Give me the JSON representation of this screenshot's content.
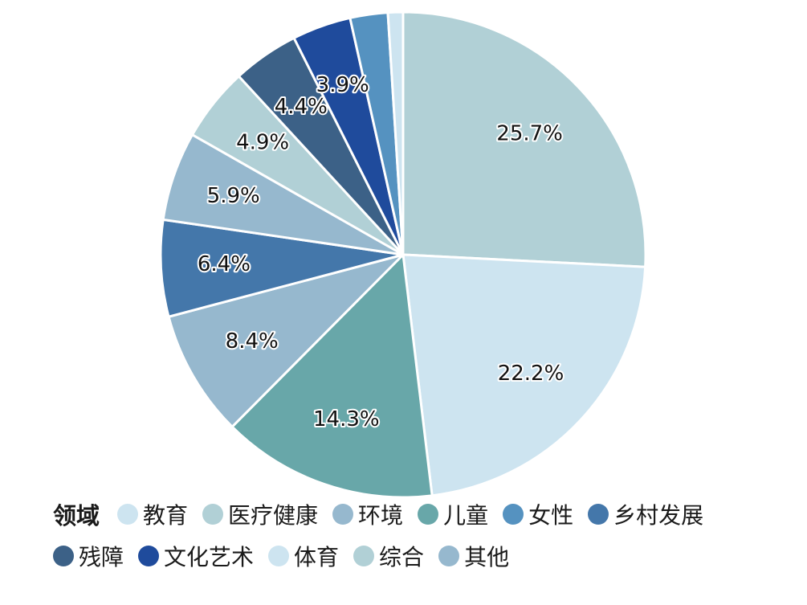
{
  "chart_data": {
    "type": "pie",
    "legend_title": "领域",
    "legend_position": "bottom",
    "slices": [
      {
        "name": "综合",
        "value": 25.7,
        "label": "25.7%",
        "color": "#b1d0d6"
      },
      {
        "name": "体育",
        "value": 22.2,
        "label": "22.2%",
        "color": "#cde4f0"
      },
      {
        "name": "儿童",
        "value": 14.3,
        "label": "14.3%",
        "color": "#68a7a9"
      },
      {
        "name": "其他",
        "value": 8.4,
        "label": "8.4%",
        "color": "#96b8ce"
      },
      {
        "name": "乡村发展",
        "value": 6.4,
        "label": "6.4%",
        "color": "#4477aa"
      },
      {
        "name": "环境",
        "value": 5.9,
        "label": "5.9%",
        "color": "#96b8ce"
      },
      {
        "name": "医疗健康",
        "value": 4.9,
        "label": "4.9%",
        "color": "#b1d0d6"
      },
      {
        "name": "残障",
        "value": 4.4,
        "label": "4.4%",
        "color": "#3c6187"
      },
      {
        "name": "文化艺术",
        "value": 3.9,
        "label": "3.9%",
        "color": "#1f4b9c"
      },
      {
        "name": "女性",
        "value": 2.5,
        "label": "",
        "color": "#5592c0"
      },
      {
        "name": "教育",
        "value": 1.0,
        "label": "",
        "color": "#cde4f0"
      }
    ],
    "legend": [
      [
        {
          "label": "教育",
          "color": "#cde4f0"
        },
        {
          "label": "医疗健康",
          "color": "#b1d0d6"
        },
        {
          "label": "环境",
          "color": "#96b8ce"
        },
        {
          "label": "儿童",
          "color": "#68a7a9"
        },
        {
          "label": "女性",
          "color": "#5592c0"
        },
        {
          "label": "乡村发展",
          "color": "#4477aa"
        }
      ],
      [
        {
          "label": "残障",
          "color": "#3c6187"
        },
        {
          "label": "文化艺术",
          "color": "#1f4b9c"
        },
        {
          "label": "体育",
          "color": "#cde4f0"
        },
        {
          "label": "综合",
          "color": "#b1d0d6"
        },
        {
          "label": "其他",
          "color": "#96b8ce"
        }
      ]
    ]
  }
}
